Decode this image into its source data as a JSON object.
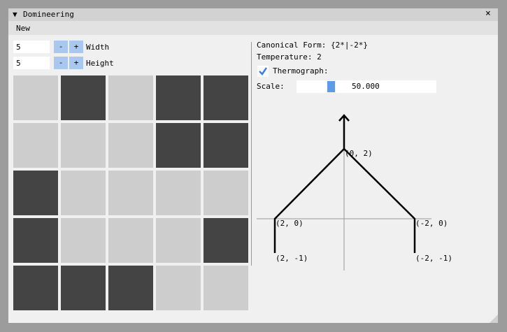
{
  "window": {
    "title": "Domineering",
    "close": "×",
    "menu": [
      "New"
    ]
  },
  "controls": {
    "width": {
      "value": "5",
      "minus": "-",
      "plus": "+",
      "label": "Width"
    },
    "height": {
      "value": "5",
      "minus": "-",
      "plus": "+",
      "label": "Height"
    }
  },
  "info": {
    "canonical_form": "Canonical Form: {2*|-2*}",
    "temperature": "Temperature: 2",
    "thermograph": "Thermograph:",
    "scale_label": "Scale:",
    "scale_value": "50.000"
  },
  "thermograph": {
    "labels": [
      "(0, 2)",
      "(2, 0)",
      "(-2, 0)",
      "(2, -1)",
      "(-2, -1)"
    ]
  }
}
